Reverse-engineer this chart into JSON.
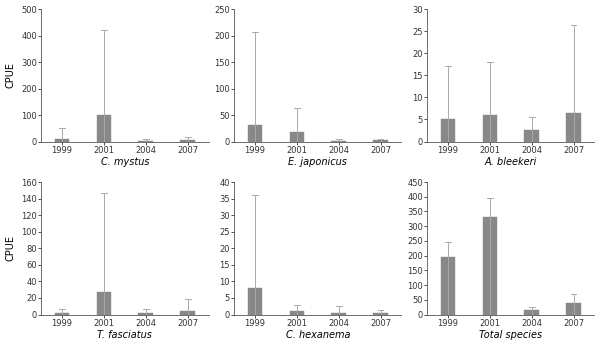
{
  "subplots": [
    {
      "title": "C. mystus",
      "ylabel": "CPUE",
      "years": [
        "1999",
        "2001",
        "2004",
        "2007"
      ],
      "values": [
        10,
        100,
        1,
        5
      ],
      "errors_upper": [
        40,
        320,
        8,
        12
      ],
      "ylim": [
        0,
        500
      ],
      "yticks": [
        0,
        100,
        200,
        300,
        400,
        500
      ]
    },
    {
      "title": "E. japonicus",
      "ylabel": "",
      "years": [
        "1999",
        "2001",
        "2004",
        "2007"
      ],
      "values": [
        32,
        18,
        1,
        2
      ],
      "errors_upper": [
        175,
        45,
        3,
        3
      ],
      "ylim": [
        0,
        250
      ],
      "yticks": [
        0,
        50,
        100,
        150,
        200,
        250
      ]
    },
    {
      "title": "A. bleekeri",
      "ylabel": "",
      "years": [
        "1999",
        "2001",
        "2004",
        "2007"
      ],
      "values": [
        5,
        6,
        2.5,
        6.5
      ],
      "errors_upper": [
        12,
        12,
        3,
        20
      ],
      "ylim": [
        0,
        30
      ],
      "yticks": [
        0,
        5,
        10,
        15,
        20,
        25,
        30
      ]
    },
    {
      "title": "T. fasciatus",
      "ylabel": "CPUE",
      "years": [
        "1999",
        "2001",
        "2004",
        "2007"
      ],
      "values": [
        2,
        27,
        2,
        4
      ],
      "errors_upper": [
        5,
        120,
        5,
        15
      ],
      "ylim": [
        0,
        160
      ],
      "yticks": [
        0,
        20,
        40,
        60,
        80,
        100,
        120,
        140,
        160
      ]
    },
    {
      "title": "C. hexanema",
      "ylabel": "",
      "years": [
        "1999",
        "2001",
        "2004",
        "2007"
      ],
      "values": [
        8,
        1,
        0.5,
        0.5
      ],
      "errors_upper": [
        28,
        2,
        2,
        1
      ],
      "ylim": [
        0,
        40
      ],
      "yticks": [
        0,
        5,
        10,
        15,
        20,
        25,
        30,
        35,
        40
      ]
    },
    {
      "title": "Total species",
      "ylabel": "",
      "years": [
        "1999",
        "2001",
        "2004",
        "2007"
      ],
      "values": [
        195,
        330,
        15,
        40
      ],
      "errors_upper": [
        50,
        65,
        12,
        30
      ],
      "ylim": [
        0,
        450
      ],
      "yticks": [
        0,
        50,
        100,
        150,
        200,
        250,
        300,
        350,
        400,
        450
      ]
    }
  ],
  "bar_color": "#888888",
  "error_color": "#aaaaaa",
  "bar_width": 0.35,
  "title_fontsize": 7,
  "tick_fontsize": 6,
  "label_fontsize": 7,
  "fig_width": 6.0,
  "fig_height": 3.46
}
